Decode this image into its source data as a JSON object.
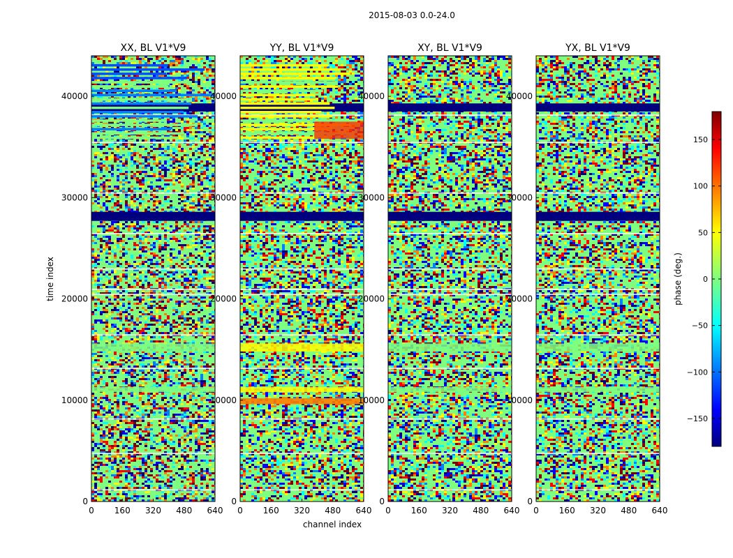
{
  "figure": {
    "suptitle": "2015-08-03 0.0-24.0"
  },
  "chart_data": {
    "type": "heatmap",
    "xlabel": "channel index",
    "ylabel": "time index",
    "xlim": [
      0,
      640
    ],
    "ylim": [
      0,
      44000
    ],
    "x_ticks": [
      0,
      160,
      320,
      480,
      640
    ],
    "y_ticks": [
      0,
      10000,
      20000,
      30000,
      40000
    ],
    "panels": [
      {
        "title": "XX, BL V1*V9"
      },
      {
        "title": "YY, BL V1*V9"
      },
      {
        "title": "XY, BL V1*V9"
      },
      {
        "title": "YX, BL V1*V9"
      }
    ],
    "colorbar": {
      "label": "phase (deg.)",
      "range": [
        -180,
        180
      ],
      "ticks": [
        -150,
        -100,
        -50,
        0,
        50,
        100,
        150
      ],
      "tick_labels": [
        "−150",
        "−100",
        "−50",
        "0",
        "50",
        "100",
        "150"
      ],
      "colormap": "jet"
    },
    "colors": {
      "jet": [
        "#00007f",
        "#0000ff",
        "#007fff",
        "#00ffff",
        "#7fff7f",
        "#ffff00",
        "#ff7f00",
        "#ff0000",
        "#7f0000"
      ],
      "axis": "#000000"
    }
  }
}
